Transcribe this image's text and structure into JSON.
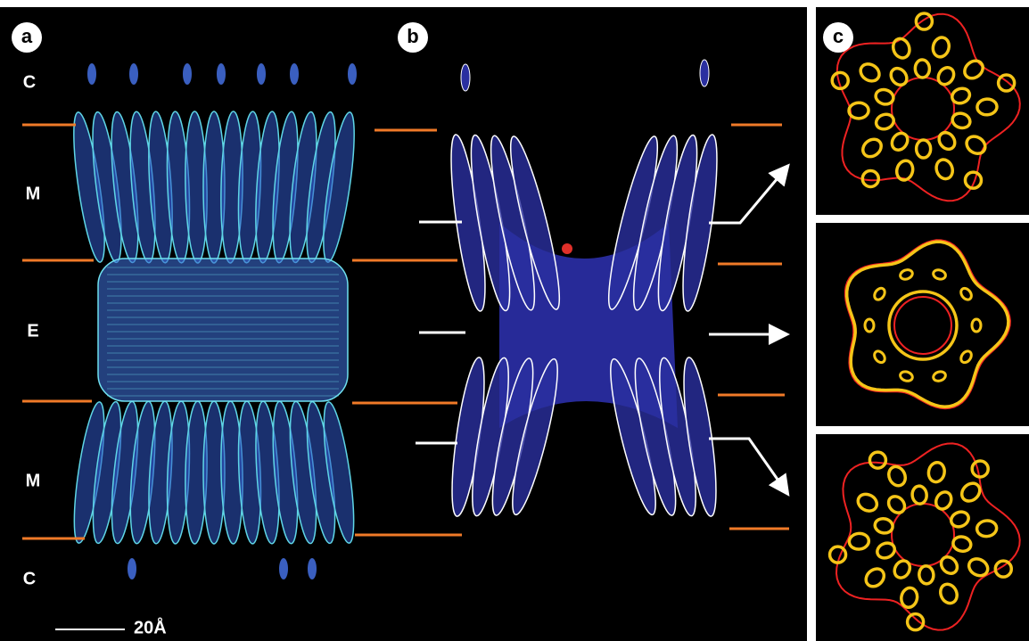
{
  "panels": {
    "a": {
      "label": "a",
      "regions": [
        "C",
        "M",
        "E",
        "M",
        "C"
      ],
      "scale_bar": "20Å"
    },
    "b": {
      "label": "b"
    },
    "c": {
      "label": "c"
    }
  }
}
